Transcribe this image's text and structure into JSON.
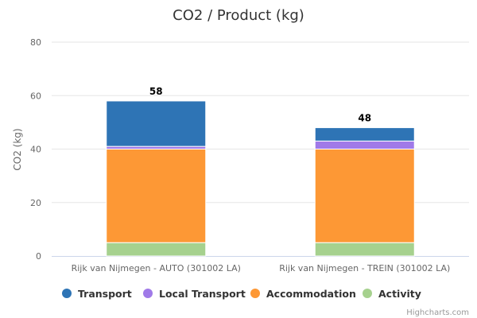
{
  "chart_data": {
    "type": "bar",
    "stacked": true,
    "title": "CO2 / Product (kg)",
    "xlabel": "",
    "ylabel": "CO2 (kg)",
    "ylim": [
      0,
      80
    ],
    "yticks": [
      0,
      20,
      40,
      60,
      80
    ],
    "grid": true,
    "legend_position": "bottom",
    "categories": [
      "Rijk van Nijmegen - AUTO (301002 LA)",
      "Rijk van Nijmegen - TREIN (301002 LA)"
    ],
    "series": [
      {
        "name": "Activity",
        "color": "#a6d18e",
        "values": [
          5,
          5
        ]
      },
      {
        "name": "Accommodation",
        "color": "#fd9835",
        "values": [
          35,
          35
        ]
      },
      {
        "name": "Local Transport",
        "color": "#a07ae8",
        "values": [
          1,
          3
        ]
      },
      {
        "name": "Transport",
        "color": "#2e74b5",
        "values": [
          17,
          5
        ]
      }
    ],
    "totals": [
      "58",
      "48"
    ],
    "legend_order": [
      "Transport",
      "Local Transport",
      "Accommodation",
      "Activity"
    ]
  },
  "credits": "Highcharts.com"
}
